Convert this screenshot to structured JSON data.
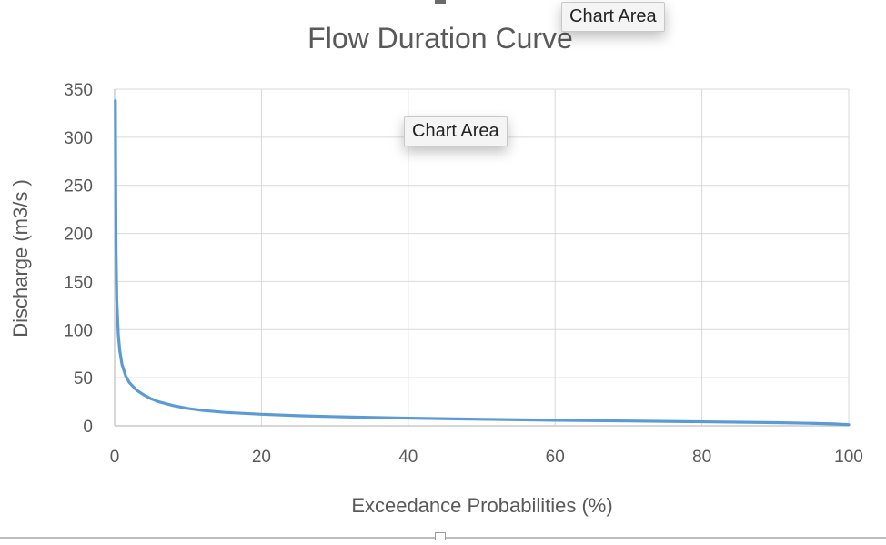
{
  "chart_data": {
    "type": "line",
    "title": "Flow Duration Curve",
    "xlabel": "Exceedance Probabilities (%)",
    "ylabel": "Discharge (m3/s )",
    "xlim": [
      0,
      100
    ],
    "ylim": [
      0,
      350
    ],
    "xticks": [
      0,
      20,
      40,
      60,
      80,
      100
    ],
    "yticks": [
      0,
      50,
      100,
      150,
      200,
      250,
      300,
      350
    ],
    "grid": true,
    "legend": "none",
    "series": [
      {
        "color": "#5b9bd5",
        "x": [
          0.1,
          0.15,
          0.2,
          0.3,
          0.5,
          0.7,
          1,
          1.5,
          2,
          3,
          4,
          5,
          6,
          8,
          10,
          12,
          15,
          20,
          25,
          30,
          40,
          50,
          60,
          70,
          80,
          90,
          95,
          98,
          100
        ],
        "y": [
          338,
          250,
          180,
          130,
          95,
          78,
          64,
          52,
          45,
          37,
          32,
          28,
          25,
          21,
          18,
          16,
          14,
          12,
          10.5,
          9.5,
          8,
          6.8,
          5.8,
          5,
          4.2,
          3.3,
          2.6,
          2,
          1.2
        ]
      }
    ]
  },
  "overlays": {
    "tooltip_top": "Chart Area",
    "tooltip_center": "Chart Area"
  }
}
